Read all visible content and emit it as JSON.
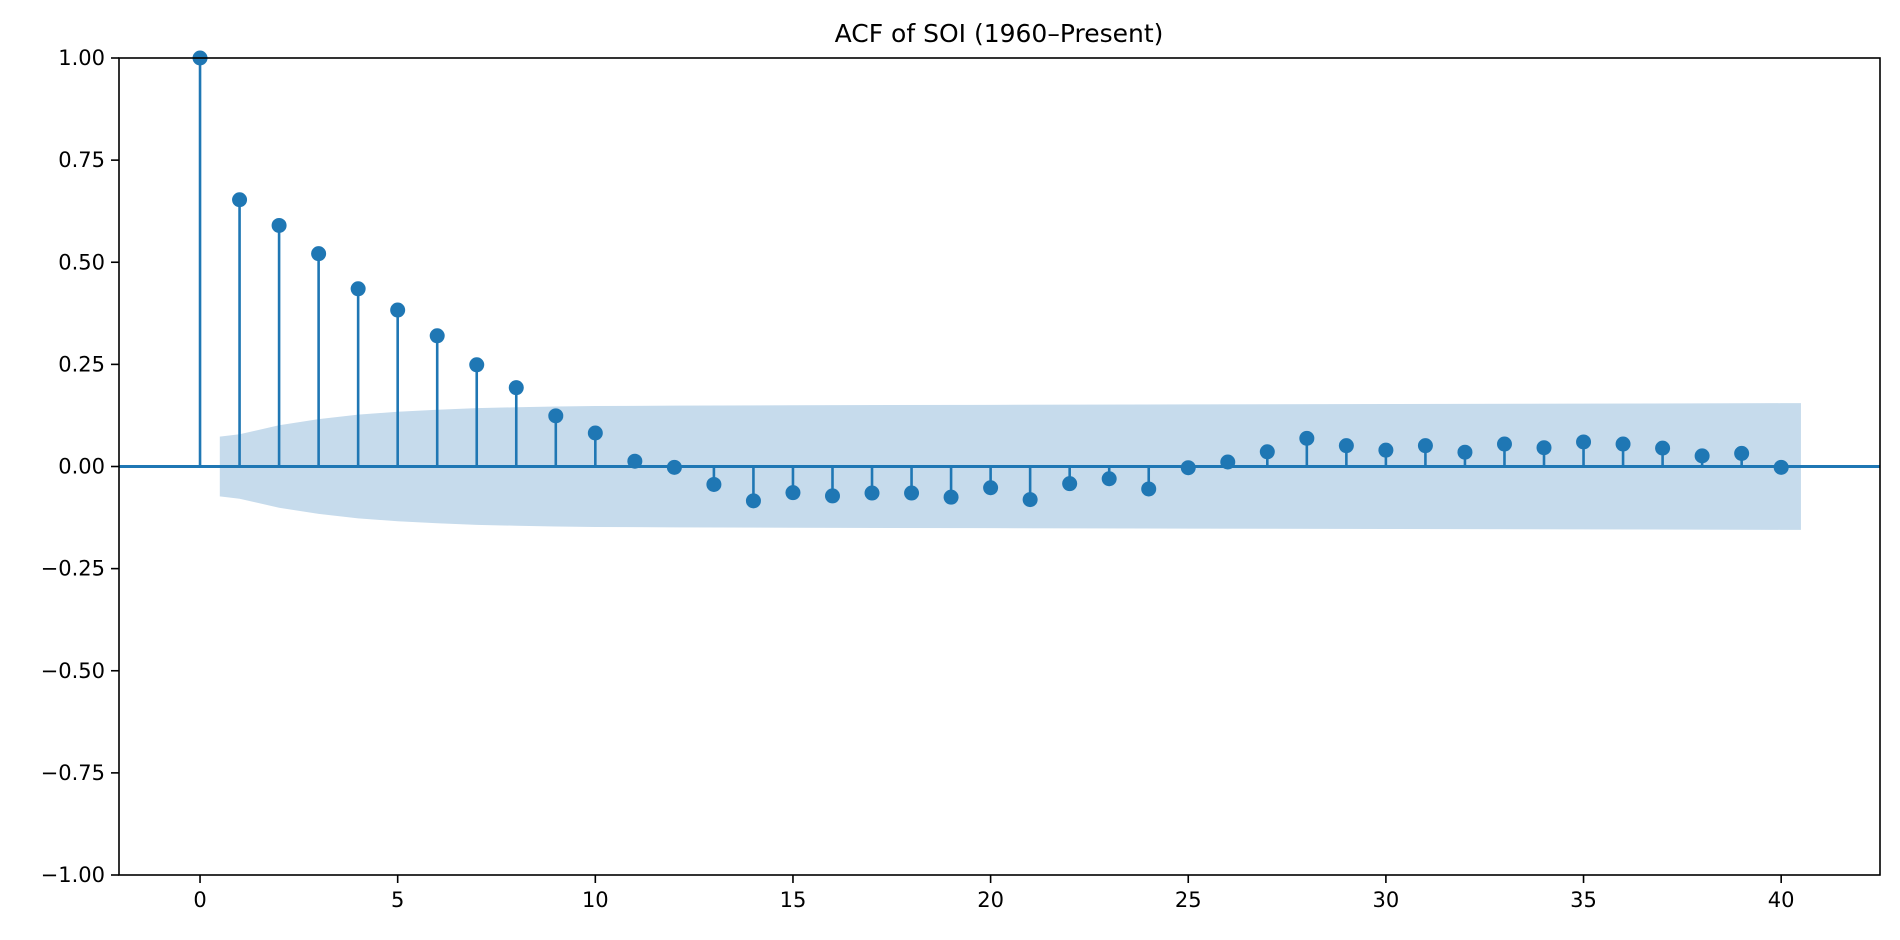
{
  "chart_data": {
    "type": "stem",
    "title": "ACF of SOI (1960–Present)",
    "xlabel": "",
    "ylabel": "",
    "xlim": [
      -2.05,
      42.5
    ],
    "ylim": [
      -1.0,
      1.0
    ],
    "x_ticks": [
      0,
      5,
      10,
      15,
      20,
      25,
      30,
      35,
      40
    ],
    "x_tick_labels": [
      "0",
      "5",
      "10",
      "15",
      "20",
      "25",
      "30",
      "35",
      "40"
    ],
    "y_ticks": [
      1.0,
      0.75,
      0.5,
      0.25,
      0.0,
      -0.25,
      -0.5,
      -0.75,
      -1.0
    ],
    "y_tick_labels": [
      "1.00",
      "0.75",
      "0.50",
      "0.25",
      "0.00",
      "−0.25",
      "−0.50",
      "−0.75",
      "−1.00"
    ],
    "lags": [
      0,
      1,
      2,
      3,
      4,
      5,
      6,
      7,
      8,
      9,
      10,
      11,
      12,
      13,
      14,
      15,
      16,
      17,
      18,
      19,
      20,
      21,
      22,
      23,
      24,
      25,
      26,
      27,
      28,
      29,
      30,
      31,
      32,
      33,
      34,
      35,
      36,
      37,
      38,
      39,
      40
    ],
    "values": [
      1.0,
      0.653,
      0.59,
      0.521,
      0.435,
      0.383,
      0.32,
      0.249,
      0.193,
      0.124,
      0.082,
      0.013,
      -0.002,
      -0.044,
      -0.084,
      -0.064,
      -0.072,
      -0.065,
      -0.065,
      -0.075,
      -0.052,
      -0.081,
      -0.042,
      -0.03,
      -0.055,
      -0.003,
      0.011,
      0.036,
      0.069,
      0.051,
      0.04,
      0.051,
      0.035,
      0.055,
      0.046,
      0.06,
      0.055,
      0.045,
      0.026,
      0.032,
      -0.002
    ],
    "confidence_band": {
      "x": [
        0.5,
        1,
        2,
        3,
        4,
        5,
        6,
        7,
        8,
        9,
        10,
        12,
        15,
        20,
        25,
        30,
        35,
        40,
        40.5
      ],
      "upper": [
        0.073,
        0.079,
        0.101,
        0.116,
        0.127,
        0.134,
        0.139,
        0.143,
        0.145,
        0.147,
        0.148,
        0.149,
        0.15,
        0.151,
        0.152,
        0.153,
        0.154,
        0.155,
        0.155
      ]
    },
    "grid": false,
    "colors": {
      "stem": "#1f77b4",
      "band": "#c6dbec",
      "axis": "#000000"
    }
  }
}
